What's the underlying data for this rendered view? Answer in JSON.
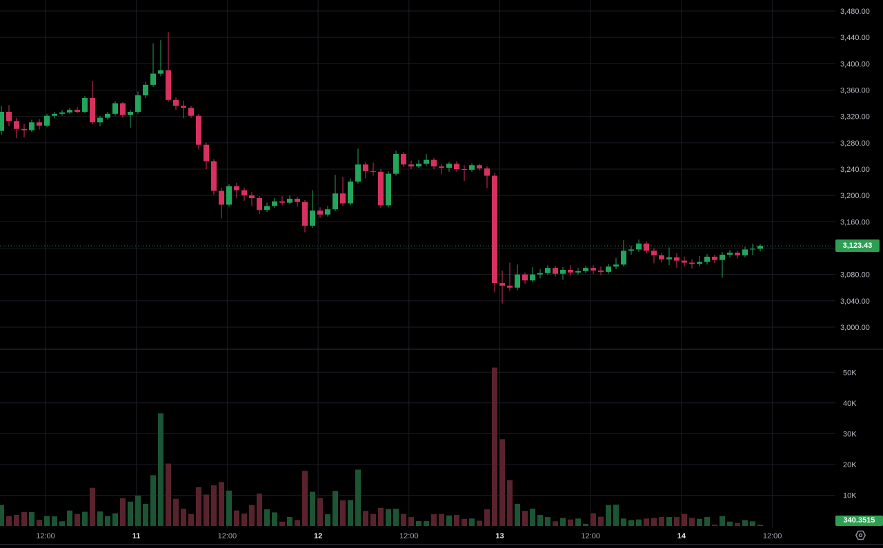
{
  "colors": {
    "background": "#000000",
    "grid": "#1b1e26",
    "pane_separator": "#2d323e",
    "bottom_border": "#3f434c",
    "candle_up": "#23a55c",
    "candle_down": "#d6315f",
    "volume_up": "#1c5534",
    "volume_down": "#59232e",
    "axis_text": "#b7bac2",
    "axis_text_emphasis": "#e8eaee",
    "last_price_line": "#2aa64e",
    "last_price_label_bg": "#2e9e52",
    "last_volume_label_bg": "#2e9e52",
    "gear_icon": "#8a8d96"
  },
  "chart_data": {
    "type": "candlestick",
    "interval_hint": "1-hour candles with volume sub-pane",
    "price_pane": {
      "axis_side": "right",
      "grid": true,
      "tick_step": 40,
      "tick_min": 3000,
      "tick_max": 3480,
      "tick_labels": [
        {
          "value": 3480,
          "label": "3,480.00"
        },
        {
          "value": 3440,
          "label": "3,440.00"
        },
        {
          "value": 3400,
          "label": "3,400.00"
        },
        {
          "value": 3360,
          "label": "3,360.00"
        },
        {
          "value": 3320,
          "label": "3,320.00"
        },
        {
          "value": 3280,
          "label": "3,280.00"
        },
        {
          "value": 3240,
          "label": "3,240.00"
        },
        {
          "value": 3200,
          "label": "3,200.00"
        },
        {
          "value": 3160,
          "label": "3,160.00"
        },
        {
          "value": 3080,
          "label": "3,080.00"
        },
        {
          "value": 3040,
          "label": "3,040.00"
        },
        {
          "value": 3000,
          "label": "3,000.00"
        }
      ],
      "last_price": 3123.43,
      "last_price_label": "3,123.43"
    },
    "volume_pane": {
      "axis_side": "right",
      "unit": "thousands",
      "tick_labels": [
        {
          "value": 50,
          "label": "50K"
        },
        {
          "value": 40,
          "label": "40K"
        },
        {
          "value": 30,
          "label": "30K"
        },
        {
          "value": 20,
          "label": "20K"
        },
        {
          "value": 10,
          "label": "10K"
        }
      ],
      "last_value_label": "340.3515"
    },
    "time_axis_labels": [
      {
        "text": "12:00",
        "emph": false
      },
      {
        "text": "11",
        "emph": true
      },
      {
        "text": "12:00",
        "emph": false
      },
      {
        "text": "12",
        "emph": true
      },
      {
        "text": "12:00",
        "emph": false
      },
      {
        "text": "13",
        "emph": true
      },
      {
        "text": "12:00",
        "emph": false
      },
      {
        "text": "14",
        "emph": true
      },
      {
        "text": "12:00",
        "emph": false
      }
    ],
    "candles_format": [
      "open",
      "high",
      "low",
      "close",
      "volume_k"
    ],
    "candles": [
      [
        3298,
        3336,
        3292,
        3327,
        6.8
      ],
      [
        3327,
        3337,
        3305,
        3313,
        3.2
      ],
      [
        3313,
        3318,
        3287,
        3301,
        3.6
      ],
      [
        3301,
        3309,
        3288,
        3299,
        4.5
      ],
      [
        3299,
        3315,
        3296,
        3311,
        4.5
      ],
      [
        3311,
        3316,
        3300,
        3306,
        2.0
      ],
      [
        3306,
        3324,
        3304,
        3321,
        3.2
      ],
      [
        3321,
        3327,
        3317,
        3324,
        3.1
      ],
      [
        3324,
        3330,
        3321,
        3326,
        1.5
      ],
      [
        3326,
        3333,
        3324,
        3330,
        5.0
      ],
      [
        3330,
        3334,
        3325,
        3327,
        3.9
      ],
      [
        3327,
        3351,
        3325,
        3348,
        4.6
      ],
      [
        3348,
        3374,
        3308,
        3311,
        12.4
      ],
      [
        3311,
        3321,
        3305,
        3318,
        4.7
      ],
      [
        3318,
        3327,
        3315,
        3324,
        3.2
      ],
      [
        3324,
        3343,
        3321,
        3340,
        4.1
      ],
      [
        3340,
        3342,
        3318,
        3322,
        9.0
      ],
      [
        3322,
        3330,
        3303,
        3327,
        7.9
      ],
      [
        3327,
        3358,
        3324,
        3352,
        9.8
      ],
      [
        3352,
        3372,
        3348,
        3368,
        7.2
      ],
      [
        3368,
        3431,
        3365,
        3385,
        16.5
      ],
      [
        3385,
        3436,
        3381,
        3390,
        36.6
      ],
      [
        3390,
        3448,
        3342,
        3345,
        20.3
      ],
      [
        3345,
        3349,
        3330,
        3336,
        8.8
      ],
      [
        3336,
        3344,
        3317,
        3333,
        5.6
      ],
      [
        3333,
        3336,
        3318,
        3321,
        3.9
      ],
      [
        3321,
        3324,
        3270,
        3277,
        12.6
      ],
      [
        3277,
        3280,
        3240,
        3252,
        10.2
      ],
      [
        3252,
        3255,
        3201,
        3207,
        13.2
      ],
      [
        3207,
        3212,
        3165,
        3186,
        14.3
      ],
      [
        3186,
        3217,
        3183,
        3214,
        11.5
      ],
      [
        3214,
        3219,
        3196,
        3208,
        5.0
      ],
      [
        3208,
        3212,
        3192,
        3200,
        4.0
      ],
      [
        3200,
        3205,
        3184,
        3196,
        6.8
      ],
      [
        3196,
        3199,
        3172,
        3178,
        10.5
      ],
      [
        3178,
        3189,
        3175,
        3184,
        5.4
      ],
      [
        3184,
        3196,
        3181,
        3191,
        4.4
      ],
      [
        3191,
        3199,
        3185,
        3189,
        1.4
      ],
      [
        3189,
        3200,
        3187,
        3195,
        2.9
      ],
      [
        3195,
        3198,
        3183,
        3190,
        1.9
      ],
      [
        3190,
        3193,
        3144,
        3154,
        17.9
      ],
      [
        3154,
        3208,
        3151,
        3177,
        11.1
      ],
      [
        3177,
        3182,
        3166,
        3171,
        9.0
      ],
      [
        3171,
        3184,
        3168,
        3179,
        3.8
      ],
      [
        3179,
        3231,
        3176,
        3203,
        11.4
      ],
      [
        3203,
        3228,
        3184,
        3188,
        8.3
      ],
      [
        3188,
        3226,
        3185,
        3221,
        8.4
      ],
      [
        3221,
        3271,
        3218,
        3247,
        18.3
      ],
      [
        3247,
        3251,
        3226,
        3237,
        4.9
      ],
      [
        3237,
        3250,
        3230,
        3236,
        3.9
      ],
      [
        3236,
        3240,
        3181,
        3185,
        5.9
      ],
      [
        3185,
        3237,
        3182,
        3233,
        5.5
      ],
      [
        3233,
        3268,
        3230,
        3263,
        5.6
      ],
      [
        3263,
        3266,
        3243,
        3247,
        3.9
      ],
      [
        3247,
        3253,
        3240,
        3244,
        2.9
      ],
      [
        3244,
        3254,
        3242,
        3248,
        1.6
      ],
      [
        3248,
        3263,
        3245,
        3254,
        1.6
      ],
      [
        3254,
        3257,
        3240,
        3244,
        3.8
      ],
      [
        3244,
        3248,
        3232,
        3242,
        3.9
      ],
      [
        3242,
        3251,
        3236,
        3248,
        3.4
      ],
      [
        3248,
        3252,
        3236,
        3240,
        3.6
      ],
      [
        3240,
        3246,
        3222,
        3239,
        2.3
      ],
      [
        3239,
        3249,
        3236,
        3246,
        2.4
      ],
      [
        3246,
        3248,
        3238,
        3241,
        1.7
      ],
      [
        3241,
        3244,
        3211,
        3230,
        5.4
      ],
      [
        3230,
        3234,
        3053,
        3067,
        51.5
      ],
      [
        3067,
        3086,
        3036,
        3063,
        28.2
      ],
      [
        3063,
        3098,
        3055,
        3060,
        14.9
      ],
      [
        3060,
        3095,
        3056,
        3080,
        7.2
      ],
      [
        3080,
        3083,
        3066,
        3071,
        4.9
      ],
      [
        3071,
        3091,
        3068,
        3080,
        5.6
      ],
      [
        3080,
        3088,
        3074,
        3082,
        3.6
      ],
      [
        3082,
        3094,
        3079,
        3090,
        2.9
      ],
      [
        3090,
        3093,
        3077,
        3081,
        1.5
      ],
      [
        3081,
        3091,
        3072,
        3087,
        2.6
      ],
      [
        3087,
        3094,
        3078,
        3083,
        2.1
      ],
      [
        3083,
        3090,
        3080,
        3085,
        2.4
      ],
      [
        3085,
        3093,
        3082,
        3090,
        0.7
      ],
      [
        3090,
        3094,
        3081,
        3086,
        4.1
      ],
      [
        3086,
        3092,
        3079,
        3084,
        3.0
      ],
      [
        3084,
        3096,
        3081,
        3092,
        6.8
      ],
      [
        3092,
        3105,
        3088,
        3095,
        6.9
      ],
      [
        3095,
        3132,
        3092,
        3116,
        2.4
      ],
      [
        3116,
        3124,
        3110,
        3118,
        1.9
      ],
      [
        3118,
        3133,
        3114,
        3127,
        2.1
      ],
      [
        3127,
        3130,
        3112,
        3116,
        2.4
      ],
      [
        3116,
        3120,
        3097,
        3109,
        2.6
      ],
      [
        3109,
        3113,
        3098,
        3103,
        2.9
      ],
      [
        3103,
        3121,
        3094,
        3106,
        2.9
      ],
      [
        3106,
        3112,
        3090,
        3101,
        2.9
      ],
      [
        3101,
        3107,
        3092,
        3098,
        3.9
      ],
      [
        3098,
        3103,
        3089,
        3096,
        2.6
      ],
      [
        3096,
        3108,
        3092,
        3099,
        2.3
      ],
      [
        3099,
        3111,
        3095,
        3107,
        2.9
      ],
      [
        3107,
        3110,
        3097,
        3102,
        0.4
      ],
      [
        3102,
        3114,
        3075,
        3110,
        3.2
      ],
      [
        3110,
        3117,
        3106,
        3113,
        1.4
      ],
      [
        3113,
        3116,
        3104,
        3109,
        0.9
      ],
      [
        3109,
        3122,
        3106,
        3118,
        1.9
      ],
      [
        3118,
        3127,
        3109,
        3119,
        1.5
      ],
      [
        3119,
        3126,
        3115,
        3123.43,
        0.34
      ]
    ]
  }
}
